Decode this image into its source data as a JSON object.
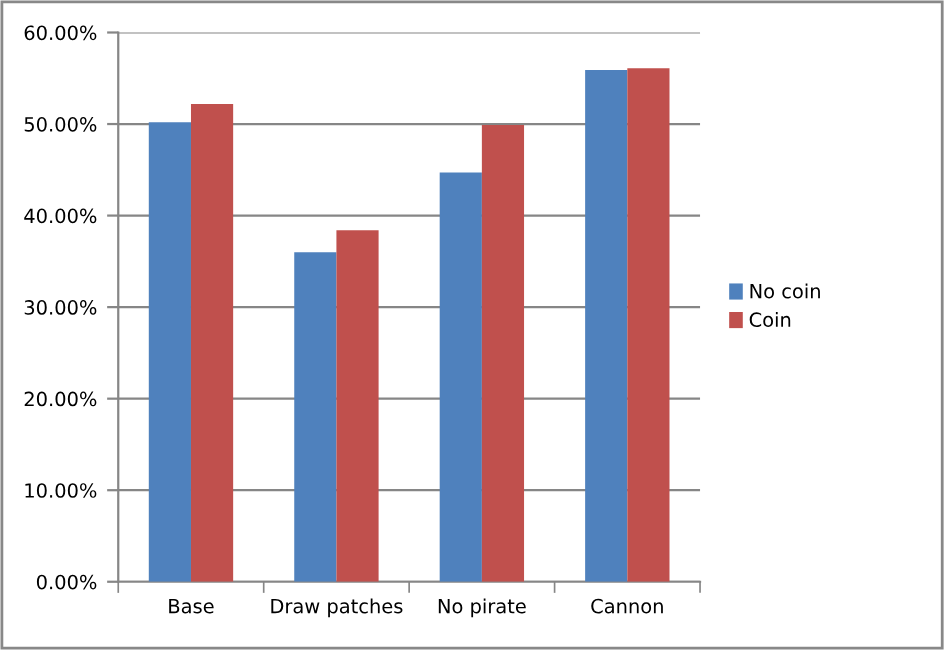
{
  "chart_data": {
    "type": "bar",
    "categories": [
      "Base",
      "Draw patches",
      "No pirate",
      "Cannon"
    ],
    "series": [
      {
        "name": "No coin",
        "color": "#4f81bd",
        "values": [
          50.2,
          36.0,
          44.7,
          55.9
        ]
      },
      {
        "name": "Coin",
        "color": "#c0504d",
        "values": [
          52.2,
          38.4,
          49.9,
          56.1
        ]
      }
    ],
    "ylim": [
      0,
      60
    ],
    "yticks": [
      {
        "value": 0,
        "label": "0.00%"
      },
      {
        "value": 10,
        "label": "10.00%"
      },
      {
        "value": 20,
        "label": "20.00%"
      },
      {
        "value": 30,
        "label": "30.00%"
      },
      {
        "value": 40,
        "label": "40.00%"
      },
      {
        "value": 50,
        "label": "50.00%"
      },
      {
        "value": 60,
        "label": "60.00%"
      }
    ],
    "grid": "y",
    "legend": "right"
  }
}
